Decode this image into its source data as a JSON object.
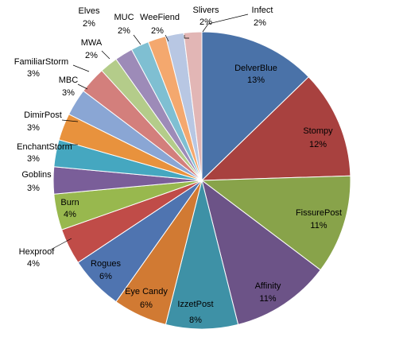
{
  "chart_data": {
    "type": "pie",
    "title": "",
    "start_angle_deg": 0,
    "direction": "clockwise",
    "slices": [
      {
        "label": "DelverBlue",
        "value": 13,
        "value_label": "13%",
        "color": "#4a72a8",
        "label_position": "inside"
      },
      {
        "label": "Stompy",
        "value": 12,
        "value_label": "12%",
        "color": "#a8413f",
        "label_position": "inside"
      },
      {
        "label": "FissurePost",
        "value": 11,
        "value_label": "11%",
        "color": "#88a34a",
        "label_position": "inside"
      },
      {
        "label": "Affinity",
        "value": 11,
        "value_label": "11%",
        "color": "#6c5387",
        "label_position": "inside"
      },
      {
        "label": "IzzetPost",
        "value": 8,
        "value_label": "8%",
        "color": "#3e91a6",
        "label_position": "inside"
      },
      {
        "label": "Eye Candy",
        "value": 6,
        "value_label": "6%",
        "color": "#d17a33",
        "label_position": "inside"
      },
      {
        "label": "Rogues",
        "value": 6,
        "value_label": "6%",
        "color": "#4f74b0",
        "label_position": "inside"
      },
      {
        "label": "Hexproof",
        "value": 4,
        "value_label": "4%",
        "color": "#c04c48",
        "label_position": "outside"
      },
      {
        "label": "Burn",
        "value": 4,
        "value_label": "4%",
        "color": "#98b84e",
        "label_position": "inside"
      },
      {
        "label": "Goblins",
        "value": 3,
        "value_label": "3%",
        "color": "#7a5e99",
        "label_position": "outside"
      },
      {
        "label": "EnchantStorm",
        "value": 3,
        "value_label": "3%",
        "color": "#45a7c0",
        "label_position": "outside"
      },
      {
        "label": "DimirPost",
        "value": 3,
        "value_label": "3%",
        "color": "#e8923d",
        "label_position": "outside"
      },
      {
        "label": "MBC",
        "value": 3,
        "value_label": "3%",
        "color": "#8aa6d4",
        "label_position": "outside"
      },
      {
        "label": "FamiliarStorm",
        "value": 3,
        "value_label": "3%",
        "color": "#d37f7c",
        "label_position": "outside"
      },
      {
        "label": "MWA",
        "value": 2,
        "value_label": "2%",
        "color": "#b4cc8a",
        "label_position": "outside"
      },
      {
        "label": "Elves",
        "value": 2,
        "value_label": "2%",
        "color": "#9d8bb8",
        "label_position": "outside"
      },
      {
        "label": "MUC",
        "value": 2,
        "value_label": "2%",
        "color": "#7fbfd2",
        "label_position": "outside"
      },
      {
        "label": "WeeFiend",
        "value": 2,
        "value_label": "2%",
        "color": "#f4a86e",
        "label_position": "outside"
      },
      {
        "label": "Slivers",
        "value": 2,
        "value_label": "2%",
        "color": "#b8c7e3",
        "label_position": "outside"
      },
      {
        "label": "Infect",
        "value": 2,
        "value_label": "2%",
        "color": "#e2b6b5",
        "label_position": "outside"
      }
    ]
  }
}
